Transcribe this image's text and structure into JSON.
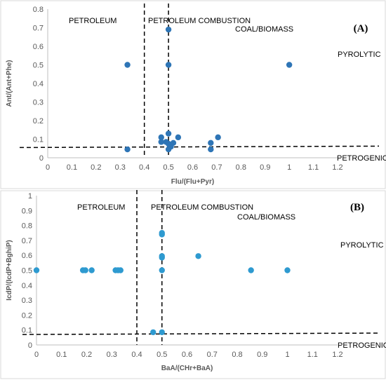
{
  "chart_data": [
    {
      "type": "scatter",
      "panel_label": "(A)",
      "xlabel": "Flu/(Flu+Pyr)",
      "ylabel": "Ant/(Ant+Phe)",
      "xlim": [
        0,
        1.2
      ],
      "ylim": [
        0,
        0.8
      ],
      "x_ticks": [
        "0",
        "0.1",
        "0.2",
        "0.3",
        "0.4",
        "0.5",
        "0.6",
        "0.7",
        "0.8",
        "0.9",
        "1",
        "1.1",
        "1.2"
      ],
      "y_ticks": [
        "0",
        "0.1",
        "0.2",
        "0.3",
        "0.4",
        "0.5",
        "0.6",
        "0.7",
        "0.8"
      ],
      "grid": false,
      "marker_color": "#2e75b6",
      "threshold_lines": {
        "vertical": [
          0.4,
          0.5
        ],
        "horizontal": 0.055
      },
      "region_labels": [
        "PETROLEUM",
        "PETROLEUM COMBUSTION",
        "COAL/BIOMASS",
        "PYROLYTIC",
        "PETROGENIC"
      ],
      "points": [
        {
          "x": 0.33,
          "y": 0.5
        },
        {
          "x": 0.33,
          "y": 0.045
        },
        {
          "x": 0.5,
          "y": 0.69
        },
        {
          "x": 0.5,
          "y": 0.5
        },
        {
          "x": 1.0,
          "y": 0.5
        },
        {
          "x": 0.47,
          "y": 0.11
        },
        {
          "x": 0.47,
          "y": 0.085
        },
        {
          "x": 0.49,
          "y": 0.085
        },
        {
          "x": 0.5,
          "y": 0.13
        },
        {
          "x": 0.5,
          "y": 0.075
        },
        {
          "x": 0.51,
          "y": 0.06
        },
        {
          "x": 0.52,
          "y": 0.08
        },
        {
          "x": 0.54,
          "y": 0.11
        },
        {
          "x": 0.5,
          "y": 0.045
        },
        {
          "x": 0.675,
          "y": 0.08
        },
        {
          "x": 0.675,
          "y": 0.045
        },
        {
          "x": 0.705,
          "y": 0.11
        }
      ]
    },
    {
      "type": "scatter",
      "panel_label": "(B)",
      "xlabel": "BaA/(CHr+BaA)",
      "ylabel": "IcdP/(IcdP+BghiP)",
      "xlim": [
        0,
        1.2
      ],
      "ylim": [
        0,
        1
      ],
      "x_ticks": [
        "0",
        "0.1",
        "0.2",
        "0.3",
        "0.4",
        "0.5",
        "0.6",
        "0.7",
        "0.8",
        "0.9",
        "1",
        "1.1",
        "1.2"
      ],
      "y_ticks": [
        "0",
        "0.1",
        "0.2",
        "0.3",
        "0.4",
        "0.5",
        "0.6",
        "0.7",
        "0.8",
        "0.9",
        "1"
      ],
      "grid": false,
      "marker_color": "#2e9ad0",
      "threshold_lines": {
        "vertical": [
          0.4,
          0.5
        ],
        "horizontal": 0.07
      },
      "region_labels": [
        "PETROLEUM",
        "PETROLEUM COMBUSTION",
        "COAL/BIOMASS",
        "PYROLYTIC",
        "PETROGENIC"
      ],
      "points": [
        {
          "x": 0.0,
          "y": 0.5
        },
        {
          "x": 0.185,
          "y": 0.5
        },
        {
          "x": 0.195,
          "y": 0.5
        },
        {
          "x": 0.22,
          "y": 0.5
        },
        {
          "x": 0.315,
          "y": 0.5
        },
        {
          "x": 0.325,
          "y": 0.5
        },
        {
          "x": 0.335,
          "y": 0.5
        },
        {
          "x": 0.5,
          "y": 0.75
        },
        {
          "x": 0.5,
          "y": 0.74
        },
        {
          "x": 0.5,
          "y": 0.595
        },
        {
          "x": 0.5,
          "y": 0.585
        },
        {
          "x": 0.5,
          "y": 0.5
        },
        {
          "x": 0.645,
          "y": 0.595
        },
        {
          "x": 0.855,
          "y": 0.5
        },
        {
          "x": 1.0,
          "y": 0.5
        },
        {
          "x": 0.465,
          "y": 0.085
        },
        {
          "x": 0.5,
          "y": 0.085
        }
      ]
    }
  ]
}
